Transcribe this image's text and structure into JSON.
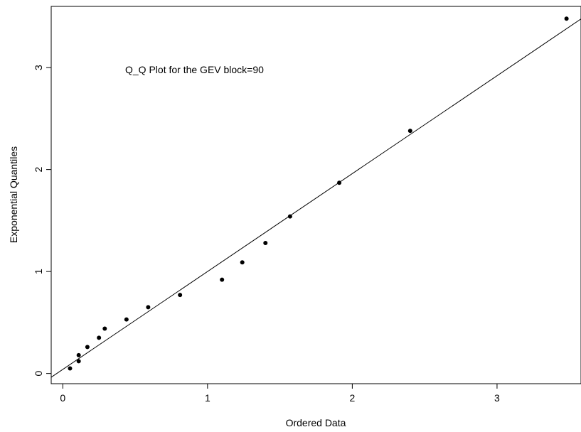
{
  "chart_data": {
    "type": "scatter",
    "title": "",
    "annotation": "Q_Q Plot for the GEV block=90",
    "xlabel": "Ordered Data",
    "ylabel": "Exponential Quantiles",
    "xlim": [
      -0.08,
      3.58
    ],
    "ylim": [
      -0.1,
      3.6
    ],
    "xticks": [
      0,
      1,
      2,
      3
    ],
    "yticks": [
      0,
      1,
      2,
      3
    ],
    "grid": false,
    "legend": "none",
    "points": [
      {
        "x": 0.05,
        "y": 0.05
      },
      {
        "x": 0.11,
        "y": 0.12
      },
      {
        "x": 0.11,
        "y": 0.18
      },
      {
        "x": 0.17,
        "y": 0.26
      },
      {
        "x": 0.25,
        "y": 0.35
      },
      {
        "x": 0.29,
        "y": 0.44
      },
      {
        "x": 0.44,
        "y": 0.53
      },
      {
        "x": 0.59,
        "y": 0.65
      },
      {
        "x": 0.81,
        "y": 0.77
      },
      {
        "x": 1.1,
        "y": 0.92
      },
      {
        "x": 1.24,
        "y": 1.09
      },
      {
        "x": 1.4,
        "y": 1.28
      },
      {
        "x": 1.57,
        "y": 1.54
      },
      {
        "x": 1.91,
        "y": 1.87
      },
      {
        "x": 2.4,
        "y": 2.38
      },
      {
        "x": 3.48,
        "y": 3.48
      }
    ],
    "reference_line": {
      "intercept": 0.04,
      "slope": 0.96
    },
    "colors": {
      "points": "#000000",
      "line": "#000000",
      "axes": "#000000"
    }
  }
}
